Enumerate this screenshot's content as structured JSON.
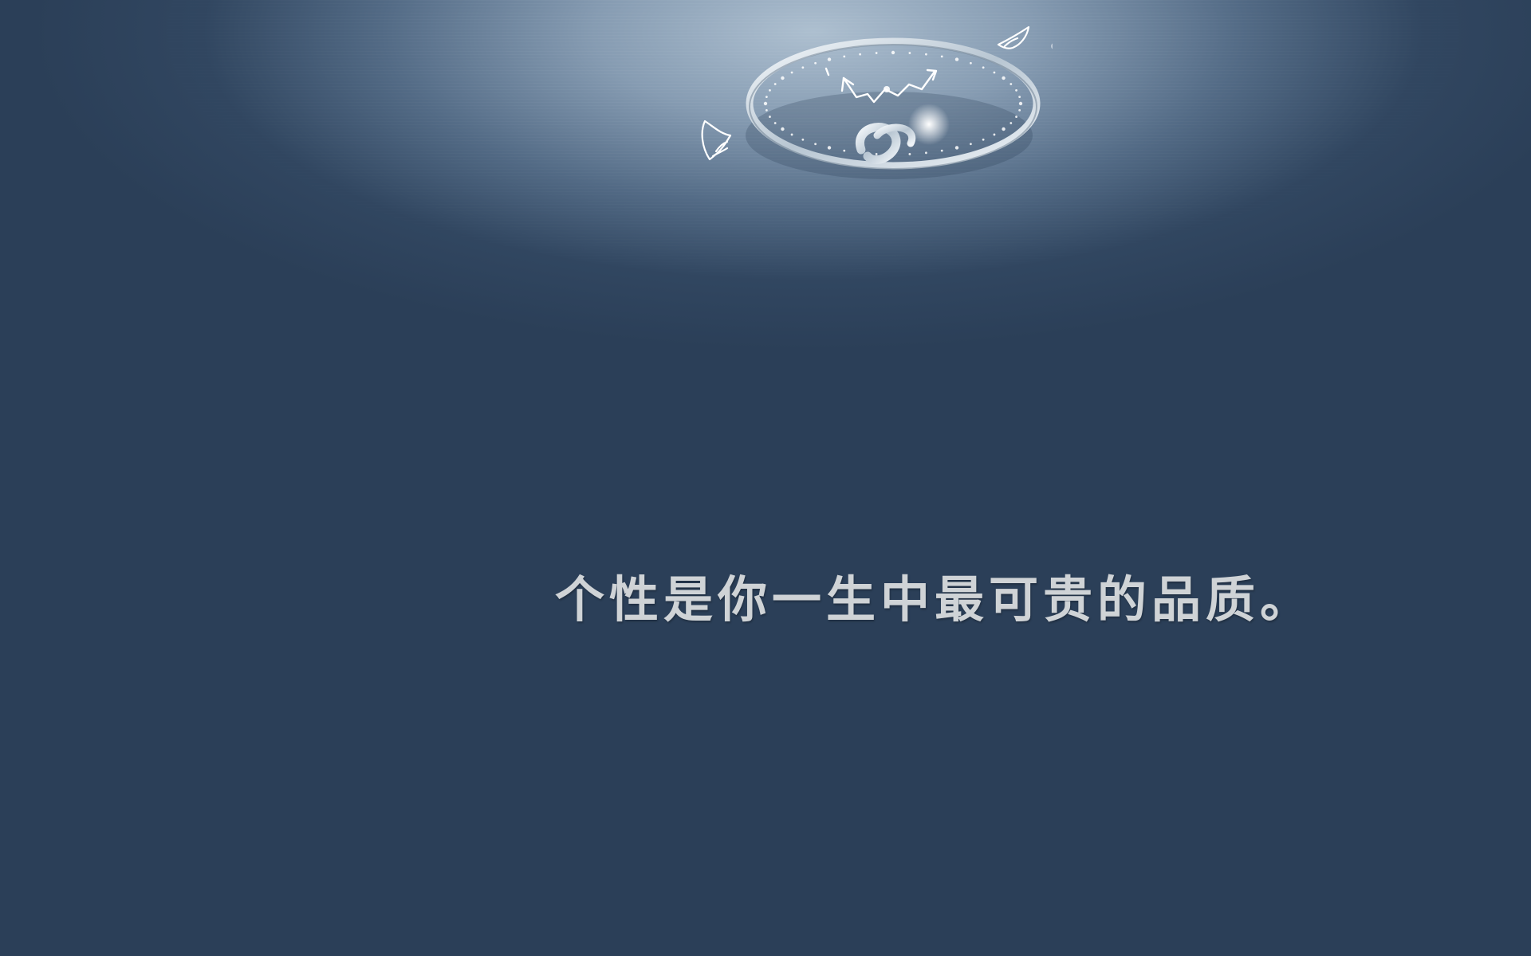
{
  "wallpaper": {
    "quote": "个性是你一生中最可贵的品质。",
    "colors": {
      "background": "#2b3f58",
      "spotlight": "#b4c6d6",
      "ring_metal": "#e4ebf1",
      "text": "#cfd3d6"
    },
    "icons": [
      "ring-with-clock-face",
      "wing-icon",
      "wing-icon"
    ]
  }
}
